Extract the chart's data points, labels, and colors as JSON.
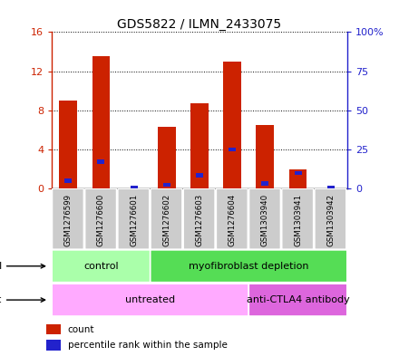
{
  "title": "GDS5822 / ILMN_2433075",
  "samples": [
    "GSM1276599",
    "GSM1276600",
    "GSM1276601",
    "GSM1276602",
    "GSM1276603",
    "GSM1276604",
    "GSM1303940",
    "GSM1303941",
    "GSM1303942"
  ],
  "counts": [
    9.0,
    13.5,
    0.05,
    6.3,
    8.7,
    13.0,
    6.5,
    2.0,
    0.05
  ],
  "percentiles": [
    5.0,
    17.0,
    0.3,
    2.5,
    8.5,
    25.0,
    3.5,
    10.0,
    0.3
  ],
  "ylim_left": [
    0,
    16
  ],
  "ylim_right": [
    0,
    100
  ],
  "yticks_left": [
    0,
    4,
    8,
    12,
    16
  ],
  "yticks_right": [
    0,
    25,
    50,
    75,
    100
  ],
  "yticklabels_right": [
    "0",
    "25",
    "50",
    "75",
    "100%"
  ],
  "bar_color": "#cc2200",
  "percentile_color": "#2222cc",
  "protocol_groups": [
    {
      "label": "control",
      "start": 0,
      "end": 3,
      "color": "#aaffaa"
    },
    {
      "label": "myofibroblast depletion",
      "start": 3,
      "end": 9,
      "color": "#55dd55"
    }
  ],
  "agent_groups": [
    {
      "label": "untreated",
      "start": 0,
      "end": 6,
      "color": "#ffaaff"
    },
    {
      "label": "anti-CTLA4 antibody",
      "start": 6,
      "end": 9,
      "color": "#dd66dd"
    }
  ],
  "sample_bg": "#cccccc",
  "plot_bg": "#ffffff",
  "legend_count_color": "#cc2200",
  "legend_pct_color": "#2222cc"
}
